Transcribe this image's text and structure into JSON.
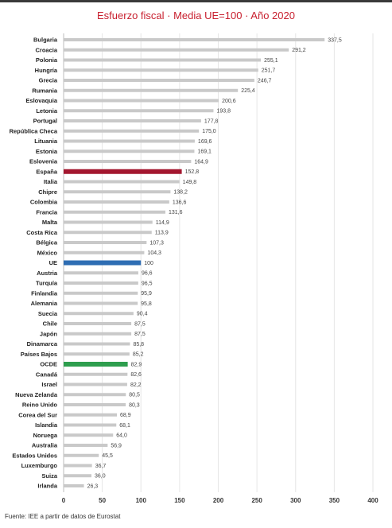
{
  "chart_data": {
    "type": "bar",
    "orientation": "horizontal",
    "title": "Esfuerzo fiscal · Media UE=100 · Año 2020",
    "xlim": [
      0,
      400
    ],
    "x_ticks": [
      "0",
      "50",
      "100",
      "150",
      "200",
      "250",
      "300",
      "350",
      "400"
    ],
    "grid": true,
    "categories": [
      "Bulgaria",
      "Croacia",
      "Polonia",
      "Hungría",
      "Grecia",
      "Rumania",
      "Eslovaquia",
      "Letonia",
      "Portugal",
      "República Checa",
      "Lituania",
      "Estonia",
      "Eslovenia",
      "España",
      "Italia",
      "Chipre",
      "Colombia",
      "Francia",
      "Malta",
      "Costa Rica",
      "Bélgica",
      "México",
      "UE",
      "Austria",
      "Turquía",
      "Finlandia",
      "Alemania",
      "Suecia",
      "Chile",
      "Japón",
      "Dinamarca",
      "Países Bajos",
      "OCDE",
      "Canadá",
      "Israel",
      "Nueva Zelanda",
      "Reino Unido",
      "Corea del Sur",
      "Islandia",
      "Noruega",
      "Australia",
      "Estados Unidos",
      "Luxemburgo",
      "Suiza",
      "Irlanda"
    ],
    "values": [
      337.5,
      291.2,
      255.1,
      251.7,
      246.7,
      225.4,
      200.6,
      193.8,
      177.8,
      175.0,
      169.6,
      169.1,
      164.9,
      152.8,
      149.8,
      138.2,
      136.6,
      131.6,
      114.9,
      113.9,
      107.3,
      104.3,
      100,
      96.6,
      96.5,
      95.9,
      95.8,
      90.4,
      87.5,
      87.5,
      85.8,
      85.2,
      82.9,
      82.6,
      82.2,
      80.5,
      80.3,
      68.9,
      68.1,
      64.0,
      56.9,
      45.5,
      36.7,
      36.0,
      26.3
    ],
    "value_labels": [
      "337,5",
      "291,2",
      "255,1",
      "251,7",
      "246,7",
      "225,4",
      "200,6",
      "193,8",
      "177,8",
      "175,0",
      "169,6",
      "169,1",
      "164,9",
      "152,8",
      "149,8",
      "138,2",
      "136,6",
      "131,6",
      "114,9",
      "113,9",
      "107,3",
      "104,3",
      "100",
      "96,6",
      "96,5",
      "95,9",
      "95,8",
      "90,4",
      "87,5",
      "87,5",
      "85,8",
      "85,2",
      "82,9",
      "82,6",
      "82,2",
      "80,5",
      "80,3",
      "68,9",
      "68,1",
      "64,0",
      "56,9",
      "45,5",
      "36,7",
      "36,0",
      "26,3"
    ],
    "colors": {
      "default": "#c9c9c9",
      "España": "#a3172f",
      "UE": "#2e6db3",
      "OCDE": "#2e9e4e"
    }
  },
  "source": "Fuente: IEE a partir de datos de Eurostat"
}
